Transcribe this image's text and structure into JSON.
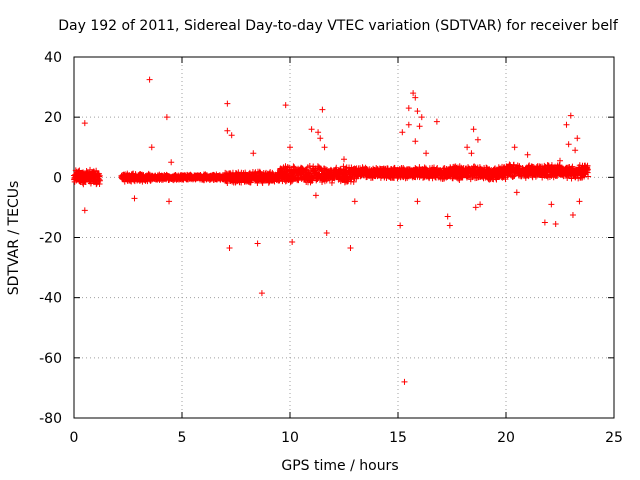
{
  "chart_data": {
    "type": "scatter",
    "title": "Day 192 of 2011, Sidereal Day-to-day VTEC variation (SDTVAR) for receiver belf",
    "xlabel": "GPS time / hours",
    "ylabel": "SDTVAR / TECUs",
    "xlim": [
      0,
      25
    ],
    "ylim": [
      -80,
      40
    ],
    "xticks": [
      0,
      5,
      10,
      15,
      20,
      25
    ],
    "yticks": [
      -80,
      -60,
      -40,
      -20,
      0,
      20,
      40
    ],
    "grid": true,
    "marker": "+",
    "color": "#ff0000",
    "dense_bands": [
      {
        "x_start": 0.0,
        "x_end": 1.2,
        "center": 0.0,
        "spread": 2.5
      },
      {
        "x_start": 2.2,
        "x_end": 3.6,
        "center": 0.0,
        "spread": 1.5
      },
      {
        "x_start": 3.6,
        "x_end": 7.0,
        "center": 0.0,
        "spread": 1.0
      },
      {
        "x_start": 7.0,
        "x_end": 9.5,
        "center": 0.0,
        "spread": 2.0
      },
      {
        "x_start": 9.5,
        "x_end": 13.0,
        "center": 1.0,
        "spread": 3.0
      },
      {
        "x_start": 13.0,
        "x_end": 17.0,
        "center": 1.5,
        "spread": 2.0
      },
      {
        "x_start": 17.0,
        "x_end": 20.0,
        "center": 1.5,
        "spread": 2.5
      },
      {
        "x_start": 20.0,
        "x_end": 23.8,
        "center": 2.0,
        "spread": 2.5
      }
    ],
    "outliers": [
      {
        "x": 0.5,
        "y": 18
      },
      {
        "x": 0.5,
        "y": -11
      },
      {
        "x": 3.5,
        "y": 32.5
      },
      {
        "x": 3.6,
        "y": 10
      },
      {
        "x": 4.3,
        "y": 20
      },
      {
        "x": 4.4,
        "y": -8
      },
      {
        "x": 4.5,
        "y": 5
      },
      {
        "x": 2.8,
        "y": -7
      },
      {
        "x": 7.1,
        "y": 24.5
      },
      {
        "x": 7.1,
        "y": 15.5
      },
      {
        "x": 7.3,
        "y": 14
      },
      {
        "x": 7.2,
        "y": -23.5
      },
      {
        "x": 8.3,
        "y": 8
      },
      {
        "x": 8.5,
        "y": -22
      },
      {
        "x": 8.7,
        "y": -38.5
      },
      {
        "x": 9.8,
        "y": 24
      },
      {
        "x": 10.1,
        "y": -21.5
      },
      {
        "x": 10.0,
        "y": 10
      },
      {
        "x": 10.5,
        "y": 2
      },
      {
        "x": 11.0,
        "y": 16
      },
      {
        "x": 11.3,
        "y": 15
      },
      {
        "x": 11.5,
        "y": 22.5
      },
      {
        "x": 11.4,
        "y": 13
      },
      {
        "x": 11.6,
        "y": 10
      },
      {
        "x": 11.7,
        "y": -18.5
      },
      {
        "x": 11.2,
        "y": -6
      },
      {
        "x": 12.8,
        "y": -23.5
      },
      {
        "x": 13.0,
        "y": -8
      },
      {
        "x": 12.5,
        "y": 6
      },
      {
        "x": 15.1,
        "y": -16
      },
      {
        "x": 15.3,
        "y": -68
      },
      {
        "x": 15.2,
        "y": 15
      },
      {
        "x": 15.5,
        "y": 17.5
      },
      {
        "x": 15.5,
        "y": 23
      },
      {
        "x": 15.7,
        "y": 28
      },
      {
        "x": 15.8,
        "y": 26.5
      },
      {
        "x": 15.9,
        "y": 22
      },
      {
        "x": 15.8,
        "y": 12
      },
      {
        "x": 16.0,
        "y": 17
      },
      {
        "x": 16.1,
        "y": 20
      },
      {
        "x": 16.3,
        "y": 8
      },
      {
        "x": 15.9,
        "y": -8
      },
      {
        "x": 16.8,
        "y": 18.5
      },
      {
        "x": 17.3,
        "y": -13
      },
      {
        "x": 17.4,
        "y": -16
      },
      {
        "x": 18.2,
        "y": 10
      },
      {
        "x": 18.4,
        "y": 8
      },
      {
        "x": 18.5,
        "y": 16
      },
      {
        "x": 18.7,
        "y": 12.5
      },
      {
        "x": 18.6,
        "y": -10
      },
      {
        "x": 18.8,
        "y": -9
      },
      {
        "x": 20.4,
        "y": 10
      },
      {
        "x": 20.5,
        "y": -5
      },
      {
        "x": 21.0,
        "y": 7.5
      },
      {
        "x": 21.8,
        "y": -15
      },
      {
        "x": 22.3,
        "y": -15.5
      },
      {
        "x": 22.1,
        "y": -9
      },
      {
        "x": 22.5,
        "y": 5.5
      },
      {
        "x": 22.9,
        "y": 11
      },
      {
        "x": 23.0,
        "y": 20.5
      },
      {
        "x": 23.3,
        "y": 13
      },
      {
        "x": 23.2,
        "y": 9
      },
      {
        "x": 22.8,
        "y": 17.5
      },
      {
        "x": 23.1,
        "y": -12.5
      },
      {
        "x": 23.4,
        "y": -8
      }
    ]
  }
}
